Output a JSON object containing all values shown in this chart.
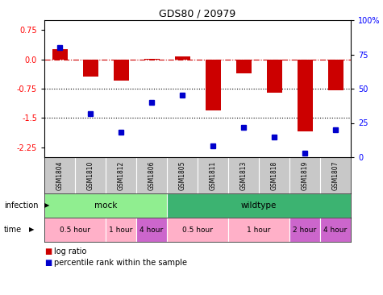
{
  "title": "GDS80 / 20979",
  "samples": [
    "GSM1804",
    "GSM1810",
    "GSM1812",
    "GSM1806",
    "GSM1805",
    "GSM1811",
    "GSM1813",
    "GSM1818",
    "GSM1819",
    "GSM1807"
  ],
  "log_ratio": [
    0.25,
    -0.45,
    -0.55,
    0.02,
    0.07,
    -1.3,
    -0.35,
    -0.85,
    -1.85,
    -0.8
  ],
  "percentile": [
    80,
    32,
    18,
    40,
    45,
    8,
    22,
    15,
    3,
    20
  ],
  "infection_groups": [
    {
      "label": "mock",
      "start": 0,
      "end": 4,
      "color": "#90EE90"
    },
    {
      "label": "wildtype",
      "start": 4,
      "end": 10,
      "color": "#3CB371"
    }
  ],
  "time_groups": [
    {
      "label": "0.5 hour",
      "start": 0,
      "end": 2,
      "color": "#FFB0C8"
    },
    {
      "label": "1 hour",
      "start": 2,
      "end": 3,
      "color": "#FFB0C8"
    },
    {
      "label": "4 hour",
      "start": 3,
      "end": 4,
      "color": "#CC66CC"
    },
    {
      "label": "0.5 hour",
      "start": 4,
      "end": 6,
      "color": "#FFB0C8"
    },
    {
      "label": "1 hour",
      "start": 6,
      "end": 8,
      "color": "#FFB0C8"
    },
    {
      "label": "2 hour",
      "start": 8,
      "end": 9,
      "color": "#CC66CC"
    },
    {
      "label": "4 hour",
      "start": 9,
      "end": 10,
      "color": "#CC66CC"
    }
  ],
  "ylim_left": [
    -2.5,
    1.0
  ],
  "ylim_right": [
    0,
    100
  ],
  "yticks_left": [
    0.75,
    0.0,
    -0.75,
    -1.5,
    -2.25
  ],
  "yticks_right": [
    100,
    75,
    50,
    25,
    0
  ],
  "bar_color": "#CC0000",
  "dot_color": "#0000CC",
  "legend_bar_label": "log ratio",
  "legend_dot_label": "percentile rank within the sample",
  "label_row_color": "#C8C8C8",
  "infection_label": "infection",
  "time_label": "time"
}
